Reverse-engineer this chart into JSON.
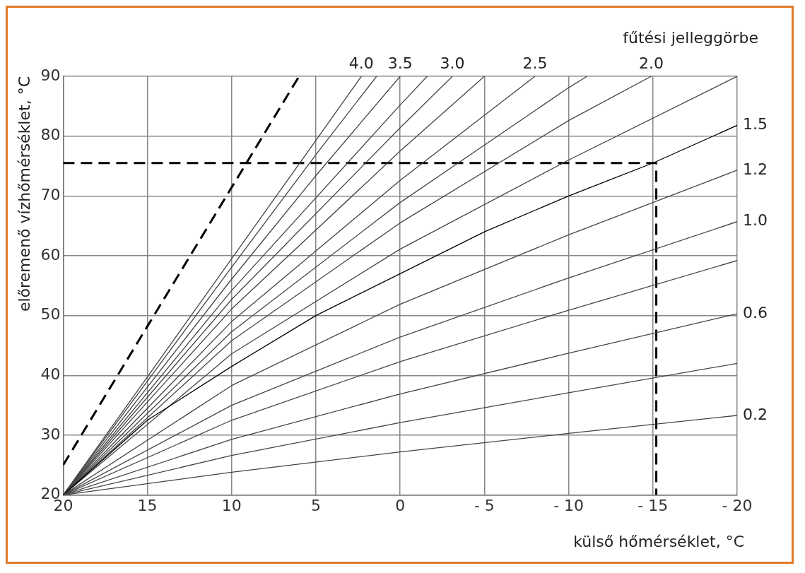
{
  "chart_data": {
    "type": "line",
    "xlabel": "külső hőmérséklet, °C",
    "ylabel": "előremenő vízhőmérséklet, °C",
    "legend_title": "fűtési jelleggörbe",
    "xlim": [
      20,
      -20
    ],
    "xticks": [
      20,
      15,
      10,
      5,
      0,
      {
        "value": -5,
        "label": "- 5"
      },
      {
        "value": -10,
        "label": "- 10"
      },
      {
        "value": -15,
        "label": "- 15"
      },
      {
        "value": -20,
        "label": "- 20"
      }
    ],
    "ylim": [
      20,
      90
    ],
    "yticks": [
      20,
      30,
      40,
      50,
      60,
      70,
      80,
      90
    ],
    "grid": true,
    "legend": false,
    "marker": "none",
    "series": [
      {
        "name": "0.2",
        "color": "#444444",
        "x": [
          20,
          10,
          0,
          -10,
          -20
        ],
        "values": [
          20,
          23.8,
          27.2,
          30.3,
          33.3
        ]
      },
      {
        "color": "#444444",
        "x": [
          20,
          10,
          0,
          -10,
          -20
        ],
        "values": [
          20,
          26.6,
          32.1,
          37.1,
          42
        ]
      },
      {
        "name": "0.6",
        "color": "#444444",
        "x": [
          20,
          10,
          0,
          -10,
          -20
        ],
        "values": [
          20,
          29.3,
          36.9,
          43.7,
          50.3
        ]
      },
      {
        "color": "#444444",
        "x": [
          20,
          10,
          0,
          -10,
          -20
        ],
        "values": [
          20,
          32.5,
          42.3,
          50.9,
          59.2
        ]
      },
      {
        "name": "1.0",
        "color": "#444444",
        "x": [
          20,
          10,
          0,
          -10,
          -20
        ],
        "values": [
          20,
          35,
          46.4,
          56.3,
          65.7
        ]
      },
      {
        "name": "1.2",
        "color": "#444444",
        "x": [
          20,
          10,
          0,
          -10,
          -20
        ],
        "values": [
          20,
          38.3,
          51.9,
          63.5,
          74.3
        ]
      },
      {
        "name": "1.5",
        "color": "#000000",
        "x": [
          20,
          15,
          10,
          5,
          0,
          -5,
          -10,
          -15,
          -20
        ],
        "values": [
          20,
          32.5,
          41.5,
          50,
          57,
          64,
          70,
          75.5,
          81.8
        ]
      },
      {
        "color": "#444444",
        "x": [
          20,
          10,
          0,
          -10,
          -20
        ],
        "values": [
          20,
          43.6,
          61.1,
          76,
          90
        ]
      },
      {
        "name": "2.0",
        "color": "#444444",
        "x": [
          20,
          10,
          0,
          -10,
          -14.9
        ],
        "values": [
          20,
          45.8,
          65.5,
          82.6,
          90
        ]
      },
      {
        "color": "#444444",
        "x": [
          20,
          10,
          0,
          -10,
          -11.1
        ],
        "values": [
          20,
          47.3,
          68.9,
          88.1,
          90
        ]
      },
      {
        "name": "2.5",
        "color": "#444444",
        "x": [
          20,
          10,
          0,
          -8
        ],
        "values": [
          20,
          49,
          72.6,
          90
        ]
      },
      {
        "color": "#444444",
        "x": [
          20,
          10,
          0,
          -5
        ],
        "values": [
          20,
          51.1,
          77.5,
          90
        ]
      },
      {
        "name": "3.0",
        "color": "#444444",
        "x": [
          20,
          10,
          0,
          -3.1
        ],
        "values": [
          20,
          52.7,
          81.4,
          90
        ]
      },
      {
        "color": "#444444",
        "x": [
          20,
          10,
          0,
          -1.6
        ],
        "values": [
          20,
          54.2,
          85.2,
          90
        ]
      },
      {
        "name": "3.5",
        "color": "#444444",
        "x": [
          20,
          10,
          5,
          0
        ],
        "values": [
          20,
          56.1,
          73.4,
          90
        ]
      },
      {
        "color": "#444444",
        "x": [
          20,
          10,
          5,
          1.4
        ],
        "values": [
          20,
          58.1,
          76.9,
          90
        ]
      },
      {
        "name": "4.0",
        "color": "#444444",
        "x": [
          20,
          10,
          5,
          2.3
        ],
        "values": [
          20,
          59.5,
          79.3,
          90
        ]
      },
      {
        "color": "#000000",
        "line_style": "dashed",
        "x": [
          20,
          6
        ],
        "values": [
          25,
          90
        ]
      },
      {
        "color": "#000000",
        "line_style": "dashed",
        "x": [
          20,
          -15.2,
          -15.2
        ],
        "values": [
          75.5,
          75.5,
          20
        ]
      }
    ]
  }
}
